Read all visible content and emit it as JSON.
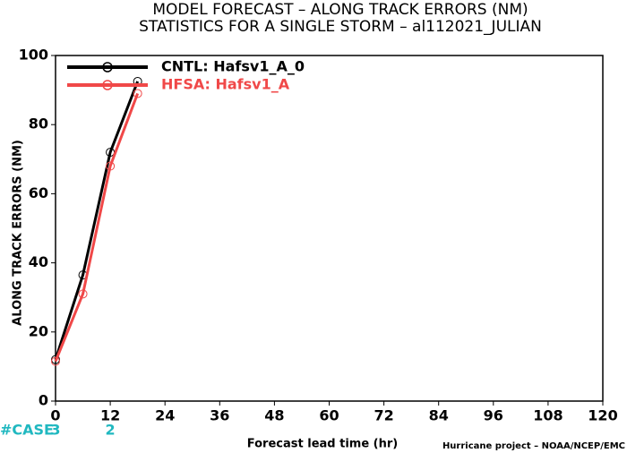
{
  "chart_data": {
    "type": "line",
    "title": "MODEL FORECAST – ALONG TRACK ERRORS (NM)",
    "subtitle": "STATISTICS FOR A SINGLE STORM – al112021_JULIAN",
    "x_label": "Forecast lead time (hr)",
    "y_label": "ALONG TRACK ERRORS (NM)",
    "x": [
      0,
      6,
      12,
      18
    ],
    "series": [
      {
        "name": "CNTL: Hafsv1_A_0",
        "color": "#000000",
        "values": [
          12,
          36.5,
          72,
          92.5
        ]
      },
      {
        "name": "HFSA: Hafsv1_A",
        "color": "#f04848",
        "values": [
          11.5,
          31,
          68,
          89
        ]
      }
    ],
    "xlim": [
      0,
      120
    ],
    "xticks": [
      0,
      12,
      24,
      36,
      48,
      60,
      72,
      84,
      96,
      108,
      120
    ],
    "ylim": [
      0,
      100
    ],
    "yticks": [
      0,
      20,
      40,
      60,
      80,
      100
    ],
    "grid": false,
    "legend": "upper left",
    "case_counts": {
      "label": "#CASE",
      "color": "#20b8c0",
      "x": [
        0,
        12
      ],
      "values": [
        3,
        2
      ]
    },
    "footer": "Hurricane project – NOAA/NCEP/EMC"
  }
}
